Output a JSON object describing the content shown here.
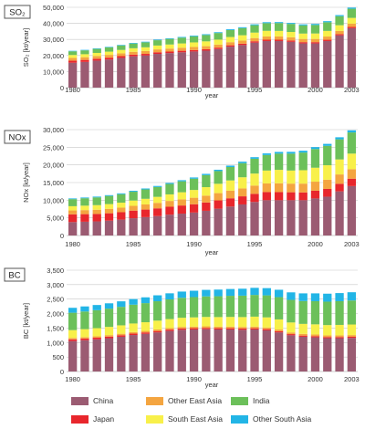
{
  "colors": {
    "China": "#9b5b72",
    "Japan": "#e8262c",
    "Other East Asia": "#f4a540",
    "South East Asia": "#f8f04a",
    "India": "#6cc05a",
    "Other South Asia": "#22b5e6",
    "grid": "#c8c8c8",
    "tab_border": "#555555"
  },
  "legend": {
    "items": [
      "China",
      "Other East Asia",
      "India",
      "Japan",
      "South East Asia",
      "Other South Asia"
    ]
  },
  "chart_data": [
    {
      "type": "bar",
      "stacked": true,
      "title": "SO₂",
      "ylabel": "SO₂ [kt/year]",
      "xlabel": "year",
      "ylim": [
        0,
        50000
      ],
      "y_ticks": [
        0,
        10000,
        20000,
        30000,
        40000,
        50000
      ],
      "y_tick_labels": [
        "0",
        "10,000",
        "20,000",
        "30,000",
        "40,000",
        "50,000"
      ],
      "x_tick_labels": [
        "1980",
        "1985",
        "1990",
        "1995",
        "2000",
        "2003"
      ],
      "grid": true,
      "categories": [
        1980,
        1981,
        1982,
        1983,
        1984,
        1985,
        1986,
        1987,
        1988,
        1989,
        1990,
        1991,
        1992,
        1993,
        1994,
        1995,
        1996,
        1997,
        1998,
        1999,
        2000,
        2001,
        2002,
        2003
      ],
      "series": [
        {
          "name": "China",
          "values": [
            15500,
            16000,
            16800,
            17500,
            18500,
            19500,
            20000,
            21000,
            21500,
            22000,
            22500,
            23000,
            24000,
            25500,
            26500,
            28000,
            29000,
            29000,
            28500,
            27500,
            27500,
            29000,
            32500,
            37000
          ]
        },
        {
          "name": "Japan",
          "values": [
            1300,
            1250,
            1200,
            1150,
            1100,
            1050,
            1000,
            1000,
            950,
            950,
            900,
            900,
            900,
            850,
            850,
            850,
            850,
            850,
            850,
            800,
            800,
            800,
            800,
            800
          ]
        },
        {
          "name": "Other East Asia",
          "values": [
            1700,
            1700,
            1700,
            1750,
            1750,
            1750,
            1800,
            1800,
            1850,
            1850,
            1900,
            1900,
            1900,
            1950,
            1950,
            2000,
            2000,
            2000,
            2000,
            2000,
            2000,
            2000,
            2000,
            2000
          ]
        },
        {
          "name": "South East Asia",
          "values": [
            1800,
            1850,
            1900,
            2000,
            2100,
            2200,
            2300,
            2400,
            2550,
            2700,
            2850,
            3000,
            3100,
            3200,
            3300,
            3400,
            3500,
            3450,
            3300,
            3350,
            3400,
            3500,
            3550,
            3600
          ]
        },
        {
          "name": "India",
          "values": [
            2300,
            2400,
            2500,
            2650,
            2800,
            2950,
            3100,
            3300,
            3450,
            3600,
            3800,
            3950,
            4100,
            4300,
            4450,
            4600,
            4800,
            4900,
            5000,
            5100,
            5300,
            5400,
            5600,
            5700
          ]
        },
        {
          "name": "Other South Asia",
          "values": [
            300,
            300,
            320,
            330,
            350,
            370,
            380,
            400,
            420,
            440,
            460,
            480,
            500,
            520,
            540,
            560,
            580,
            600,
            620,
            640,
            660,
            680,
            700,
            720
          ]
        }
      ]
    },
    {
      "type": "bar",
      "stacked": true,
      "title": "NOx",
      "ylabel": "NOx [kt/year]",
      "xlabel": "year",
      "ylim": [
        0,
        30000
      ],
      "y_ticks": [
        0,
        5000,
        10000,
        15000,
        20000,
        25000,
        30000
      ],
      "y_tick_labels": [
        "0",
        "5,000",
        "10,000",
        "15,000",
        "20,000",
        "25,000",
        "30,000"
      ],
      "x_tick_labels": [
        "1980",
        "1985",
        "1990",
        "1995",
        "2000",
        "2003"
      ],
      "grid": true,
      "categories": [
        1980,
        1981,
        1982,
        1983,
        1984,
        1985,
        1986,
        1987,
        1988,
        1989,
        1990,
        1991,
        1992,
        1993,
        1994,
        1995,
        1996,
        1997,
        1998,
        1999,
        2000,
        2001,
        2002,
        2003
      ],
      "series": [
        {
          "name": "China",
          "values": [
            3800,
            3900,
            4000,
            4200,
            4500,
            4900,
            5200,
            5500,
            5900,
            6200,
            6500,
            7000,
            7600,
            8200,
            8800,
            9500,
            10000,
            10000,
            10000,
            10000,
            10500,
            11000,
            12500,
            14000
          ]
        },
        {
          "name": "Japan",
          "values": [
            2200,
            2150,
            2100,
            2100,
            2100,
            2150,
            2150,
            2200,
            2250,
            2300,
            2350,
            2350,
            2350,
            2350,
            2300,
            2300,
            2300,
            2300,
            2250,
            2200,
            2200,
            2200,
            2150,
            2100
          ]
        },
        {
          "name": "Other East Asia",
          "values": [
            1100,
            1150,
            1200,
            1250,
            1300,
            1350,
            1450,
            1550,
            1650,
            1750,
            1850,
            1950,
            2050,
            2150,
            2250,
            2350,
            2450,
            2500,
            2450,
            2500,
            2550,
            2600,
            2650,
            2700
          ]
        },
        {
          "name": "South East Asia",
          "values": [
            1200,
            1250,
            1300,
            1350,
            1400,
            1500,
            1600,
            1700,
            1850,
            2000,
            2200,
            2400,
            2650,
            2900,
            3150,
            3400,
            3650,
            3800,
            3700,
            3800,
            3950,
            4100,
            4250,
            4400
          ]
        },
        {
          "name": "India",
          "values": [
            2000,
            2100,
            2200,
            2300,
            2400,
            2500,
            2650,
            2800,
            2950,
            3100,
            3200,
            3400,
            3600,
            3800,
            4000,
            4200,
            4400,
            4600,
            4800,
            5000,
            5300,
            5500,
            5700,
            6000
          ]
        },
        {
          "name": "Other South Asia",
          "values": [
            200,
            210,
            220,
            230,
            240,
            260,
            270,
            290,
            300,
            320,
            340,
            360,
            380,
            400,
            420,
            440,
            460,
            480,
            500,
            520,
            540,
            560,
            580,
            600
          ]
        }
      ]
    },
    {
      "type": "bar",
      "stacked": true,
      "title": "BC",
      "ylabel": "BC [kt/year]",
      "xlabel": "year",
      "ylim": [
        0,
        3500
      ],
      "y_ticks": [
        0,
        500,
        1000,
        1500,
        2000,
        2500,
        3000,
        3500
      ],
      "y_tick_labels": [
        "0",
        "500",
        "1,000",
        "1,500",
        "2,000",
        "2,500",
        "3,000",
        "3,500"
      ],
      "x_tick_labels": [
        "1980",
        "1985",
        "1990",
        "1995",
        "2000",
        "2003"
      ],
      "grid": true,
      "categories": [
        1980,
        1981,
        1982,
        1983,
        1984,
        1985,
        1986,
        1987,
        1988,
        1989,
        1990,
        1991,
        1992,
        1993,
        1994,
        1995,
        1996,
        1997,
        1998,
        1999,
        2000,
        2001,
        2002,
        2003
      ],
      "series": [
        {
          "name": "China",
          "values": [
            1050,
            1080,
            1110,
            1150,
            1200,
            1260,
            1300,
            1350,
            1400,
            1440,
            1450,
            1460,
            1450,
            1450,
            1440,
            1450,
            1420,
            1350,
            1250,
            1200,
            1180,
            1150,
            1150,
            1160
          ]
        },
        {
          "name": "Japan",
          "values": [
            60,
            58,
            56,
            54,
            52,
            50,
            49,
            48,
            47,
            46,
            45,
            44,
            44,
            43,
            43,
            42,
            42,
            41,
            41,
            40,
            40,
            39,
            39,
            38
          ]
        },
        {
          "name": "Other East Asia",
          "values": [
            50,
            50,
            51,
            52,
            52,
            53,
            53,
            54,
            54,
            55,
            55,
            56,
            56,
            57,
            57,
            58,
            58,
            58,
            58,
            59,
            59,
            59,
            60,
            60
          ]
        },
        {
          "name": "South East Asia",
          "values": [
            270,
            275,
            280,
            285,
            290,
            295,
            300,
            305,
            310,
            315,
            320,
            325,
            330,
            335,
            340,
            345,
            350,
            350,
            345,
            345,
            350,
            355,
            360,
            365
          ]
        },
        {
          "name": "India",
          "values": [
            600,
            610,
            620,
            630,
            640,
            650,
            660,
            670,
            680,
            690,
            700,
            710,
            720,
            730,
            740,
            750,
            760,
            770,
            780,
            790,
            800,
            810,
            820,
            830
          ]
        },
        {
          "name": "Other South Asia",
          "values": [
            170,
            175,
            180,
            185,
            190,
            195,
            200,
            205,
            210,
            215,
            220,
            225,
            230,
            235,
            240,
            245,
            250,
            255,
            260,
            265,
            270,
            275,
            280,
            285
          ]
        }
      ]
    }
  ]
}
